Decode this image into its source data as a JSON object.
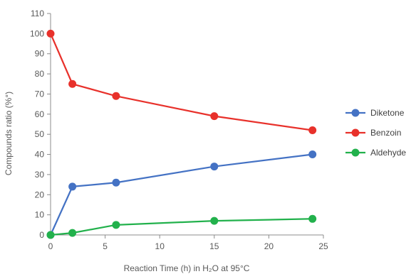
{
  "chart_data": {
    "type": "line",
    "title": "",
    "xlabel": "Reaction Time (h) in H₂O at 95°C",
    "ylabel": "Compounds ratio (%°)",
    "xlim": [
      0,
      25
    ],
    "ylim": [
      0,
      110
    ],
    "xticks": [
      0,
      5,
      10,
      15,
      20,
      25
    ],
    "yticks": [
      0,
      10,
      20,
      30,
      40,
      50,
      60,
      70,
      80,
      90,
      100,
      110
    ],
    "grid": false,
    "legend_position": "right",
    "x": [
      0,
      2,
      6,
      15,
      24
    ],
    "series": [
      {
        "name": "Diketone",
        "color": "#4472C4",
        "values": [
          0,
          24,
          26,
          34,
          40
        ]
      },
      {
        "name": "Benzoin",
        "color": "#E8312B",
        "values": [
          100,
          75,
          69,
          59,
          52
        ]
      },
      {
        "name": "Aldehyde",
        "color": "#22B14C",
        "values": [
          0,
          1,
          5,
          7,
          8
        ]
      }
    ]
  }
}
